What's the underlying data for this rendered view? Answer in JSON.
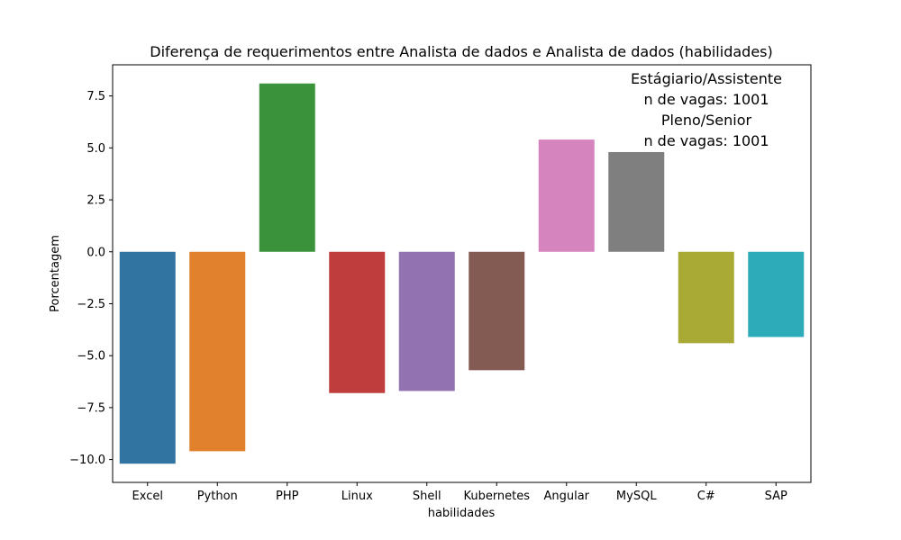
{
  "chart_data": {
    "type": "bar",
    "title": "Diferença de requerimentos entre Analista de dados e Analista de dados (habilidades)",
    "xlabel": "habilidades",
    "ylabel": "Porcentagem",
    "categories": [
      "Excel",
      "Python",
      "PHP",
      "Linux",
      "Shell",
      "Kubernetes",
      "Angular",
      "MySQL",
      "C#",
      "SAP"
    ],
    "values": [
      -10.2,
      -9.6,
      8.1,
      -6.8,
      -6.7,
      -5.7,
      5.4,
      4.8,
      -4.4,
      -4.1
    ],
    "colors": [
      "#3274a1",
      "#e1812c",
      "#3a923a",
      "#c03d3e",
      "#9372b2",
      "#845b53",
      "#d684bd",
      "#7f7f7f",
      "#a9aa35",
      "#2eabb8"
    ],
    "ylim": [
      -11.1,
      9.0
    ],
    "yticks": [
      -10.0,
      -7.5,
      -5.0,
      -2.5,
      0.0,
      2.5,
      5.0,
      7.5
    ],
    "ytick_labels": [
      "−10.0",
      "−7.5",
      "−5.0",
      "−2.5",
      "0.0",
      "2.5",
      "5.0",
      "7.5"
    ],
    "annotation": [
      "Estágiario/Assistente",
      "n de vagas: 1001",
      "Pleno/Senior",
      "n de vagas: 1001"
    ],
    "grid": false,
    "legend": "none"
  }
}
